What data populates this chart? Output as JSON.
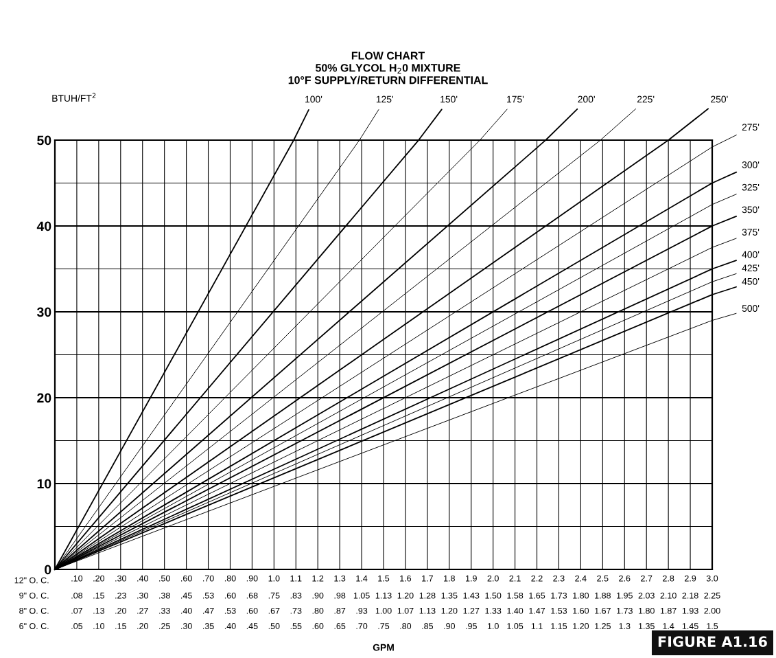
{
  "chart_data": {
    "type": "line",
    "title": "FLOW CHART\n50% GLYCOL H$_{2}$0 MIXTURE\n10°F SUPPLY/RETURN DIFFERENTIAL",
    "ylabel": "BTUH/FT$^{2}$",
    "annotations": [
      "12\" O. C.",
      "9\" O. C.",
      ".08",
      ".15",
      ".23",
      ".30",
      ".38",
      ".45",
      ".53",
      ".60",
      ".68",
      ".75",
      ".83",
      ".90",
      ".98",
      "1.05",
      "1.13",
      "1.20",
      "1.28",
      "1.35",
      "1.43",
      "1.50",
      "1.58",
      "1.65",
      "1.73",
      "1.80",
      "1.88",
      "1.95",
      "2.03",
      "2.10",
      "2.18",
      "2.25",
      "8\" O. C.",
      ".07",
      ".13",
      ".20",
      ".27",
      ".33",
      ".40",
      ".47",
      ".53",
      ".60",
      ".67",
      ".73",
      ".80",
      ".87",
      ".93",
      "1.00",
      "1.07",
      "1.13",
      "1.20",
      "1.27",
      "1.33",
      "1.40",
      "1.47",
      "1.53",
      "1.60",
      "1.67",
      "1.73",
      "1.80",
      "1.87",
      "1.93",
      "2.00",
      "6\" O. C.",
      ".05",
      ".10",
      ".15",
      ".20",
      ".25",
      ".30",
      ".35",
      ".40",
      ".45",
      ".50",
      ".55",
      ".60",
      ".65",
      ".70",
      ".75",
      ".80",
      ".85",
      ".90",
      ".95",
      "1.0",
      "1.05",
      "1.1",
      "1.15",
      "1.20",
      "1.25",
      "1.3",
      "1.35",
      "1.4",
      "1.45",
      "1.5",
      "GPM",
      "FIGURE A1.16"
    ],
    "xlim": [
      0,
      3.0
    ],
    "ylim": [
      0,
      50
    ],
    "xticks": [
      {
        "value": 0.1,
        "label": ".10"
      },
      {
        "value": 0.2,
        "label": ".20"
      },
      {
        "value": 0.3,
        "label": ".30"
      },
      {
        "value": 0.4,
        "label": ".40"
      },
      {
        "value": 0.5,
        "label": ".50"
      },
      {
        "value": 0.6,
        "label": ".60"
      },
      {
        "value": 0.7,
        "label": ".70"
      },
      {
        "value": 0.8,
        "label": ".80"
      },
      {
        "value": 0.9,
        "label": ".90"
      },
      {
        "value": 1.0,
        "label": "1.0"
      },
      1.1,
      1.2,
      1.3,
      1.4,
      1.5,
      1.6,
      1.7,
      1.8,
      1.9,
      {
        "value": 2.0,
        "label": "2.0"
      },
      2.1,
      2.2,
      2.3,
      2.4,
      2.5,
      2.6,
      2.7,
      2.8,
      2.9,
      {
        "value": 3.0,
        "label": "3.0"
      }
    ],
    "yticks": [
      0,
      {
        "value": 5,
        "label": null
      },
      10,
      {
        "value": 15,
        "label": null
      },
      20,
      {
        "value": 25,
        "label": null
      },
      30,
      {
        "value": 35,
        "label": null
      },
      40,
      {
        "value": 45,
        "label": null
      },
      50
    ],
    "grid": true,
    "series": [
      {
        "name": "100'",
        "color": "#000000",
        "x": [
          0,
          1.09
        ],
        "values": [
          0,
          50
        ]
      },
      {
        "name": "125'",
        "color": "#000000",
        "x": [
          0,
          1.39
        ],
        "values": [
          0,
          50
        ]
      },
      {
        "name": "150'",
        "color": "#000000",
        "x": [
          0,
          1.66
        ],
        "values": [
          0,
          50
        ]
      },
      {
        "name": "175'",
        "color": "#000000",
        "x": [
          0,
          1.94
        ],
        "values": [
          0,
          50
        ]
      },
      {
        "name": "200'",
        "color": "#000000",
        "x": [
          0,
          2.24
        ],
        "values": [
          0,
          50
        ]
      },
      {
        "name": "225'",
        "color": "#000000",
        "x": [
          0,
          2.49
        ],
        "values": [
          0,
          50
        ]
      },
      {
        "name": "250'",
        "color": "#000000",
        "x": [
          0,
          2.8
        ],
        "values": [
          0,
          50
        ]
      },
      {
        "name": "275'",
        "color": "#000000",
        "x": [
          0,
          3.0
        ],
        "values": [
          0,
          49.2
        ]
      },
      {
        "name": "300'",
        "color": "#000000",
        "x": [
          0,
          3.0
        ],
        "values": [
          0,
          45
        ]
      },
      {
        "name": "325'",
        "color": "#000000",
        "x": [
          0,
          3.0
        ],
        "values": [
          0,
          42.5
        ]
      },
      {
        "name": "350'",
        "color": "#000000",
        "x": [
          0,
          3.0
        ],
        "values": [
          0,
          40
        ]
      },
      {
        "name": "375'",
        "color": "#000000",
        "x": [
          0,
          3.0
        ],
        "values": [
          0,
          37.5
        ]
      },
      {
        "name": "400'",
        "color": "#000000",
        "x": [
          0,
          3.0
        ],
        "values": [
          0,
          35
        ]
      },
      {
        "name": "425'",
        "color": "#000000",
        "x": [
          0,
          3.0
        ],
        "values": [
          0,
          33.5
        ]
      },
      {
        "name": "450'",
        "color": "#000000",
        "x": [
          0,
          3.0
        ],
        "values": [
          0,
          32
        ]
      },
      {
        "name": "500'",
        "color": "#000000",
        "x": [
          0,
          3.0
        ],
        "values": [
          0,
          29
        ]
      }
    ]
  }
}
